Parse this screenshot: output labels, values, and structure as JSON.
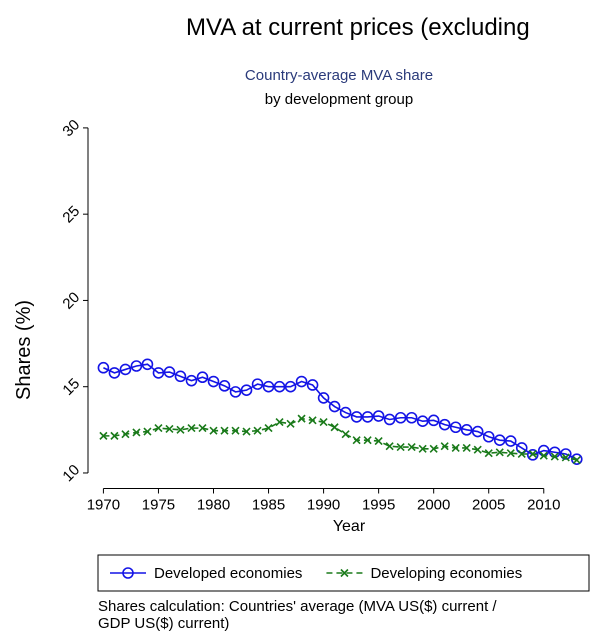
{
  "chart_data": {
    "type": "line",
    "title": "MVA at current prices (excluding",
    "subtitle": [
      "Country-average MVA share",
      "by development group"
    ],
    "xlabel": "Year",
    "ylabel": "Shares (%)",
    "note": [
      "Shares calculation: Countries' average (MVA US($) current /",
      "GDP US($) current)"
    ],
    "x": [
      1970,
      1971,
      1972,
      1973,
      1974,
      1975,
      1976,
      1977,
      1978,
      1979,
      1980,
      1981,
      1982,
      1983,
      1984,
      1985,
      1986,
      1987,
      1988,
      1989,
      1990,
      1991,
      1992,
      1993,
      1994,
      1995,
      1996,
      1997,
      1998,
      1999,
      2000,
      2001,
      2002,
      2003,
      2004,
      2005,
      2006,
      2007,
      2008,
      2009,
      2010,
      2011,
      2012,
      2013
    ],
    "series": [
      {
        "name": "Developed economies",
        "color": "#1414e6",
        "marker": "circle",
        "dashed": false,
        "values": [
          16.1,
          15.8,
          16.0,
          16.2,
          16.3,
          15.8,
          15.85,
          15.6,
          15.35,
          15.55,
          15.3,
          15.05,
          14.7,
          14.8,
          15.15,
          15.0,
          15.0,
          15.0,
          15.3,
          15.1,
          14.35,
          13.85,
          13.5,
          13.25,
          13.25,
          13.3,
          13.1,
          13.2,
          13.2,
          13.0,
          13.05,
          12.8,
          12.65,
          12.5,
          12.4,
          12.1,
          11.9,
          11.85,
          11.45,
          11.05,
          11.3,
          11.2,
          11.1,
          10.8
        ]
      },
      {
        "name": "Developing economies",
        "color": "#1a7a1a",
        "marker": "x",
        "dashed": true,
        "values": [
          12.15,
          12.15,
          12.25,
          12.35,
          12.4,
          12.6,
          12.55,
          12.5,
          12.6,
          12.6,
          12.45,
          12.45,
          12.45,
          12.4,
          12.45,
          12.6,
          12.95,
          12.85,
          13.15,
          13.05,
          12.95,
          12.65,
          12.25,
          11.9,
          11.9,
          11.85,
          11.55,
          11.5,
          11.5,
          11.4,
          11.4,
          11.55,
          11.45,
          11.45,
          11.35,
          11.15,
          11.2,
          11.15,
          11.1,
          11.1,
          11.0,
          10.95,
          10.9,
          10.75
        ]
      }
    ],
    "xlim": [
      1968.6,
      2014.2
    ],
    "xticks": [
      1970,
      1975,
      1980,
      1985,
      1990,
      1995,
      2000,
      2005,
      2010
    ],
    "ylim": [
      9.1,
      30.4
    ],
    "yticks": [
      10,
      15,
      20,
      25,
      30
    ],
    "grid": false,
    "legend": "bottom"
  }
}
